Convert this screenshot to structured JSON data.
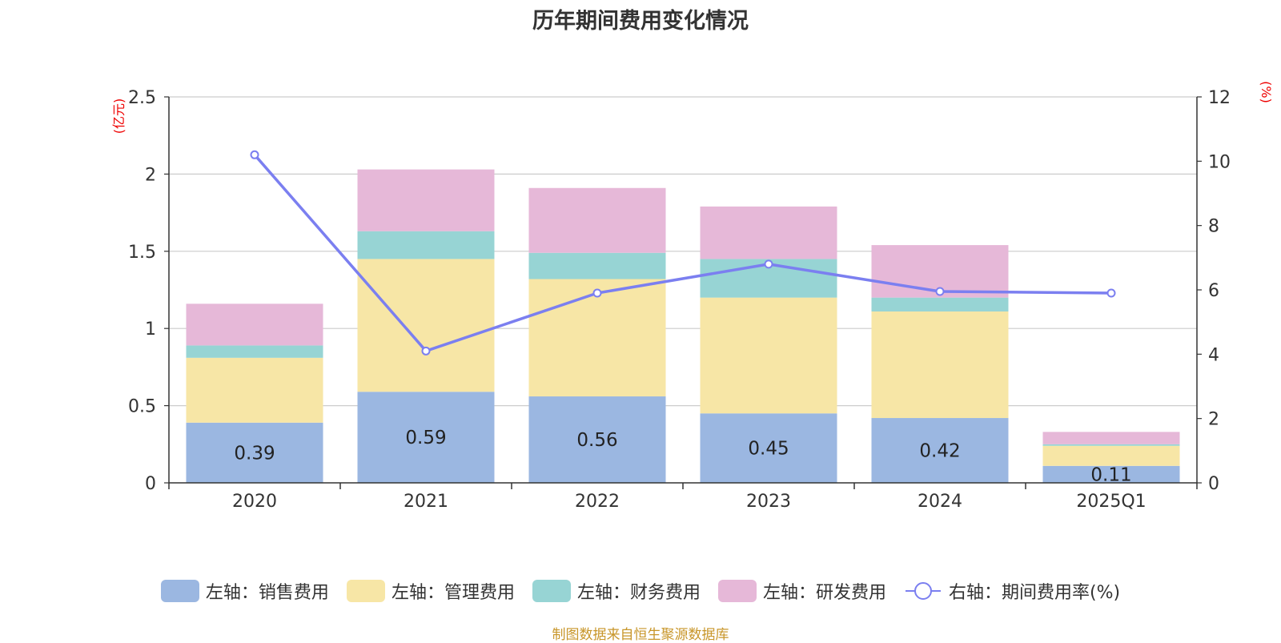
{
  "chart_data": {
    "type": "bar",
    "stacked": true,
    "title": "历年期间费用变化情况",
    "categories": [
      "2020",
      "2021",
      "2022",
      "2023",
      "2024",
      "2025Q1"
    ],
    "series": [
      {
        "name": "左轴：销售费用",
        "axis": "left",
        "color": "#9bb7e1",
        "values": [
          0.39,
          0.59,
          0.56,
          0.45,
          0.42,
          0.11
        ]
      },
      {
        "name": "左轴：管理费用",
        "axis": "left",
        "color": "#f7e6a6",
        "values": [
          0.42,
          0.86,
          0.76,
          0.75,
          0.69,
          0.13
        ]
      },
      {
        "name": "左轴：财务费用",
        "axis": "left",
        "color": "#97d4d4",
        "values": [
          0.08,
          0.18,
          0.17,
          0.25,
          0.09,
          0.01
        ]
      },
      {
        "name": "左轴：研发费用",
        "axis": "left",
        "color": "#e6b8d8",
        "values": [
          0.27,
          0.4,
          0.42,
          0.34,
          0.34,
          0.08
        ]
      },
      {
        "name": "右轴：期间费用率(%)",
        "axis": "right",
        "type": "line",
        "color": "#7b7ff0",
        "values": [
          10.2,
          4.1,
          5.9,
          6.8,
          5.95,
          5.9
        ]
      }
    ],
    "bar_labels": [
      "0.39",
      "0.59",
      "0.56",
      "0.45",
      "0.42",
      "0.11"
    ],
    "y_left": {
      "unit": "(亿元)",
      "ylim": [
        0,
        2.5
      ],
      "ticks": [
        "0",
        "0.5",
        "1",
        "1.5",
        "2",
        "2.5"
      ],
      "tick_values": [
        0,
        0.5,
        1,
        1.5,
        2,
        2.5
      ]
    },
    "y_right": {
      "unit": "(%)",
      "ylim": [
        0,
        12
      ],
      "ticks": [
        "0",
        "2",
        "4",
        "6",
        "8",
        "10",
        "12"
      ],
      "tick_values": [
        0,
        2,
        4,
        6,
        8,
        10,
        12
      ]
    },
    "grid": true,
    "legend_position": "bottom"
  },
  "source_note": "制图数据来自恒生聚源数据库"
}
